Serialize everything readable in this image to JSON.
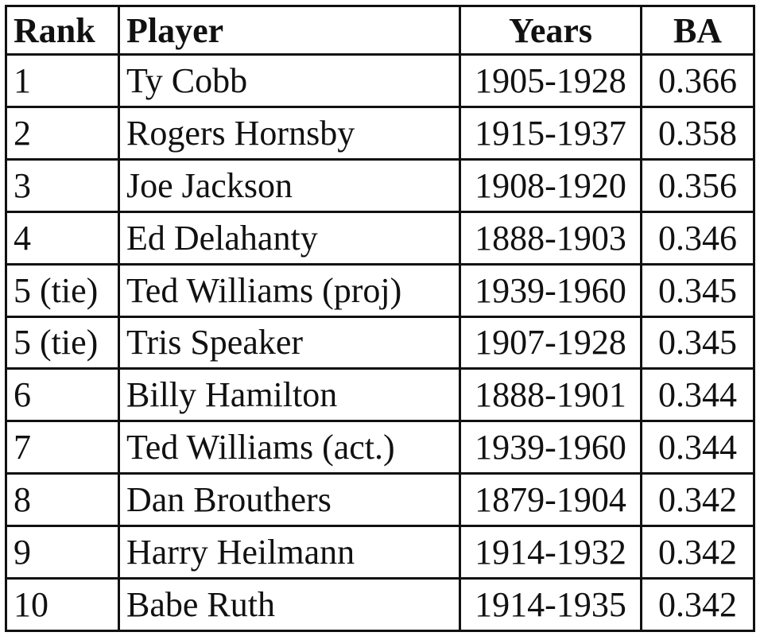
{
  "table": {
    "header": [
      "Rank",
      "Player",
      "Years",
      "BA"
    ],
    "rows": [
      [
        "1",
        "Ty Cobb",
        "1905-1928",
        "0.366"
      ],
      [
        "2",
        "Rogers Hornsby",
        "1915-1937",
        "0.358"
      ],
      [
        "3",
        "Joe Jackson",
        "1908-1920",
        "0.356"
      ],
      [
        "4",
        "Ed Delahanty",
        "1888-1903",
        "0.346"
      ],
      [
        "5 (tie)",
        "Ted Williams (proj)",
        "1939-1960",
        "0.345"
      ],
      [
        "5 (tie)",
        "Tris Speaker",
        "1907-1928",
        "0.345"
      ],
      [
        "6",
        "Billy Hamilton",
        "1888-1901",
        "0.344"
      ],
      [
        "7",
        "Ted Williams (act.)",
        "1939-1960",
        "0.344"
      ],
      [
        "8",
        "Dan Brouthers",
        "1879-1904",
        "0.342"
      ],
      [
        "9",
        "Harry Heilmann",
        "1914-1932",
        "0.342"
      ],
      [
        "10",
        "Babe Ruth",
        "1914-1935",
        "0.342"
      ]
    ]
  }
}
